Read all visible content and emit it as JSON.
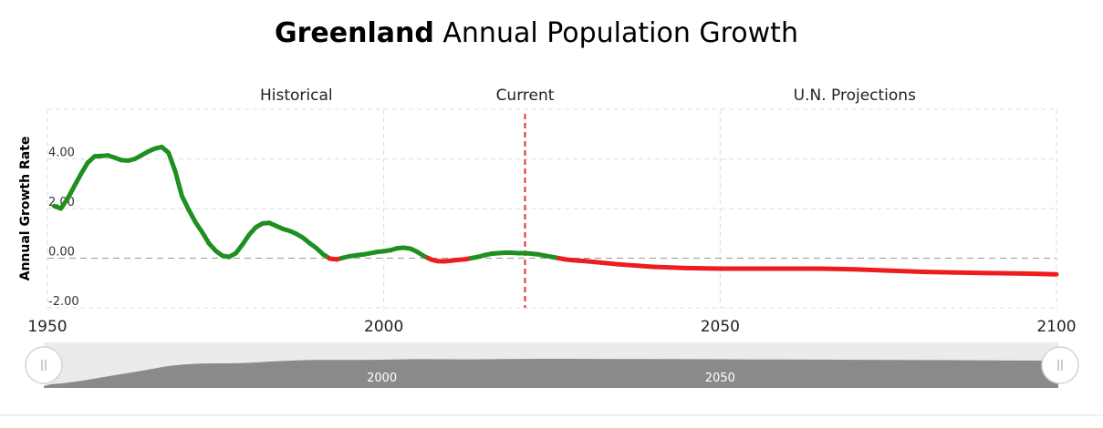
{
  "title_bold": "Greenland",
  "title_rest": "Annual Population Growth",
  "chart_data": {
    "type": "line",
    "title": "Greenland Annual Population Growth",
    "ylabel": "Annual Growth Rate",
    "xlim": [
      1950,
      2100
    ],
    "ylim": [
      -2.0,
      6.0
    ],
    "x_ticks": [
      "1950",
      "2000",
      "2050",
      "2100"
    ],
    "y_ticks": [
      "-2.00",
      "0.00",
      "2.00",
      "4.00"
    ],
    "sections": [
      {
        "label": "Historical",
        "at": 1987
      },
      {
        "label": "Current",
        "at": 2021
      },
      {
        "label": "U.N. Projections",
        "at": 2070
      }
    ],
    "current_year": 2021,
    "colors": {
      "positive": "#1f8f1f",
      "negative": "#ee1c1c",
      "current_marker": "#e03131",
      "navigator_fill": "#8a8a8a"
    },
    "navigator_labels": [
      "2000",
      "2050"
    ],
    "series": [
      {
        "x": [
          1951,
          1952,
          1953,
          1954,
          1955,
          1956,
          1957,
          1958,
          1959,
          1960,
          1961,
          1962,
          1963,
          1964,
          1965,
          1966,
          1967,
          1968,
          1969,
          1970,
          1971,
          1972,
          1973,
          1974,
          1975,
          1976,
          1977,
          1978,
          1979,
          1980,
          1981,
          1982,
          1983,
          1984,
          1985,
          1986,
          1987,
          1988,
          1989,
          1990,
          1991,
          1992,
          1993,
          1994,
          1995,
          1996,
          1997,
          1998,
          1999,
          2000,
          2001,
          2002,
          2003,
          2004,
          2005,
          2006,
          2007,
          2008,
          2009,
          2010,
          2011,
          2012,
          2013,
          2014,
          2015,
          2016,
          2017,
          2018,
          2019,
          2020,
          2021,
          2022,
          2023,
          2024,
          2025,
          2026,
          2027,
          2028,
          2029,
          2030,
          2035,
          2040,
          2045,
          2050,
          2055,
          2060,
          2065,
          2070,
          2075,
          2080,
          2085,
          2090,
          2095,
          2100
        ],
        "y": [
          2.1,
          2.0,
          2.4,
          2.9,
          3.4,
          3.85,
          4.1,
          4.12,
          4.14,
          4.05,
          3.95,
          3.93,
          4.0,
          4.15,
          4.3,
          4.42,
          4.48,
          4.25,
          3.5,
          2.5,
          1.95,
          1.45,
          1.05,
          0.6,
          0.3,
          0.1,
          0.05,
          0.2,
          0.55,
          0.95,
          1.25,
          1.4,
          1.42,
          1.3,
          1.18,
          1.1,
          0.98,
          0.82,
          0.6,
          0.4,
          0.15,
          -0.02,
          -0.05,
          0.02,
          0.08,
          0.12,
          0.15,
          0.2,
          0.25,
          0.28,
          0.32,
          0.4,
          0.42,
          0.38,
          0.25,
          0.08,
          -0.05,
          -0.12,
          -0.13,
          -0.1,
          -0.07,
          -0.05,
          0.0,
          0.05,
          0.12,
          0.18,
          0.2,
          0.22,
          0.22,
          0.2,
          0.2,
          0.18,
          0.15,
          0.1,
          0.05,
          0.0,
          -0.05,
          -0.08,
          -0.1,
          -0.12,
          -0.25,
          -0.35,
          -0.4,
          -0.42,
          -0.42,
          -0.42,
          -0.42,
          -0.45,
          -0.5,
          -0.55,
          -0.58,
          -0.6,
          -0.62,
          -0.65
        ]
      }
    ]
  }
}
